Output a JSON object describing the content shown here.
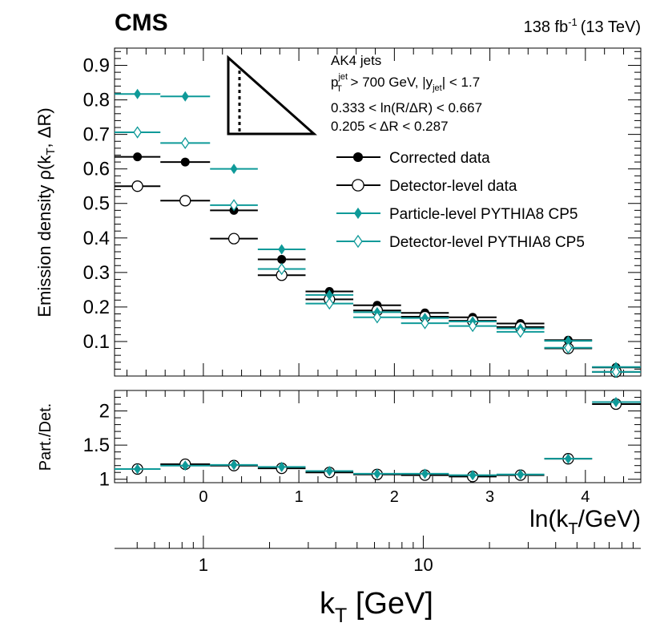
{
  "header": {
    "experiment": "CMS",
    "lumi": "138 fb",
    "lumi_exp": "-1",
    "energy": "(13 TeV)"
  },
  "chart_data": {
    "type": "scatter",
    "top_panel": {
      "ylabel": "Emission density ρ(k",
      "ylabel_sub": "T",
      "ylabel_tail": ", ΔR)",
      "ylim": [
        0.0,
        0.95
      ],
      "yticks": [
        0.1,
        0.2,
        0.3,
        0.4,
        0.5,
        0.6,
        0.7,
        0.8,
        0.9
      ],
      "ytick_labels": [
        "0.1",
        "0.2",
        "0.3",
        "0.4",
        "0.5",
        "0.6",
        "0.7",
        "0.8",
        "0.9"
      ]
    },
    "ratio_panel": {
      "ylabel": "Part./Det.",
      "ylim": [
        0.95,
        2.3
      ],
      "yticks": [
        1.0,
        1.5,
        2.0
      ],
      "ytick_labels": [
        "1",
        "1.5",
        "2"
      ]
    },
    "x": {
      "label": "ln(k",
      "label_sub": "T",
      "label_tail": "/GeV)",
      "xlim": [
        -0.93,
        4.58
      ],
      "ticks": [
        0,
        1,
        2,
        3,
        4
      ],
      "tick_labels": [
        "0",
        "1",
        "2",
        "3",
        "4"
      ]
    },
    "x2": {
      "label": "k",
      "label_sub": "T",
      "label_tail": " [GeV]",
      "major_ticks": [
        1,
        10
      ],
      "major_labels": [
        "1",
        "10"
      ],
      "minor_ticks": [
        0.5,
        0.6,
        0.7,
        0.8,
        0.9,
        2,
        3,
        4,
        5,
        6,
        7,
        8,
        9,
        20,
        30,
        40,
        50,
        60,
        70,
        80,
        90
      ]
    },
    "annotations": {
      "jets": "AK4 jets",
      "pt_cut_p": "p",
      "pt_cut_sub": "T",
      "pt_cut_sup": "jet",
      "pt_cut_rest": " > 700 GeV, |y",
      "pt_cut_ysub": "jet",
      "pt_cut_tail": "| < 1.7",
      "ln_cut": "0.333 < ln(R/ΔR) < 0.667",
      "dr_cut": "0.205 < ΔR < 0.287"
    },
    "legend_position": "top-right",
    "bins": [
      [
        -0.93,
        -0.45
      ],
      [
        -0.45,
        0.07
      ],
      [
        0.07,
        0.57
      ],
      [
        0.57,
        1.07
      ],
      [
        1.07,
        1.57
      ],
      [
        1.57,
        2.07
      ],
      [
        2.07,
        2.57
      ],
      [
        2.57,
        3.07
      ],
      [
        3.07,
        3.57
      ],
      [
        3.57,
        4.07
      ],
      [
        4.07,
        4.58
      ]
    ],
    "bin_centers": [
      -0.69,
      -0.19,
      0.32,
      0.82,
      1.32,
      1.82,
      2.32,
      2.82,
      3.32,
      3.82,
      4.32
    ],
    "series": [
      {
        "name": "Corrected data",
        "marker": "filled-circle",
        "color": "#000000",
        "values": [
          0.635,
          0.62,
          0.48,
          0.338,
          0.245,
          0.205,
          0.183,
          0.17,
          0.152,
          0.104,
          0.025
        ]
      },
      {
        "name": "Detector-level data",
        "marker": "open-circle",
        "color": "#000000",
        "values": [
          0.55,
          0.508,
          0.398,
          0.292,
          0.222,
          0.19,
          0.172,
          0.16,
          0.142,
          0.08,
          0.012
        ]
      },
      {
        "name": "Particle-level PYTHIA8 CP5",
        "marker": "filled-diamond",
        "color": "#0f9a99",
        "values": [
          0.817,
          0.81,
          0.6,
          0.367,
          0.235,
          0.185,
          0.168,
          0.158,
          0.138,
          0.102,
          0.026
        ]
      },
      {
        "name": "Detector-level PYTHIA8 CP5",
        "marker": "open-diamond",
        "color": "#0f9a99",
        "values": [
          0.706,
          0.675,
          0.495,
          0.31,
          0.21,
          0.17,
          0.153,
          0.145,
          0.128,
          0.082,
          0.012
        ]
      }
    ],
    "ratio_series": [
      {
        "name": "Data ratio",
        "marker": "open-circle",
        "color": "#000000",
        "values": [
          1.15,
          1.22,
          1.2,
          1.16,
          1.1,
          1.07,
          1.06,
          1.04,
          1.06,
          1.3,
          2.1
        ]
      },
      {
        "name": "PYTHIA8 ratio",
        "marker": "filled-diamond",
        "color": "#0f9a99",
        "values": [
          1.15,
          1.2,
          1.21,
          1.18,
          1.12,
          1.08,
          1.08,
          1.06,
          1.07,
          1.3,
          2.13
        ]
      }
    ]
  }
}
